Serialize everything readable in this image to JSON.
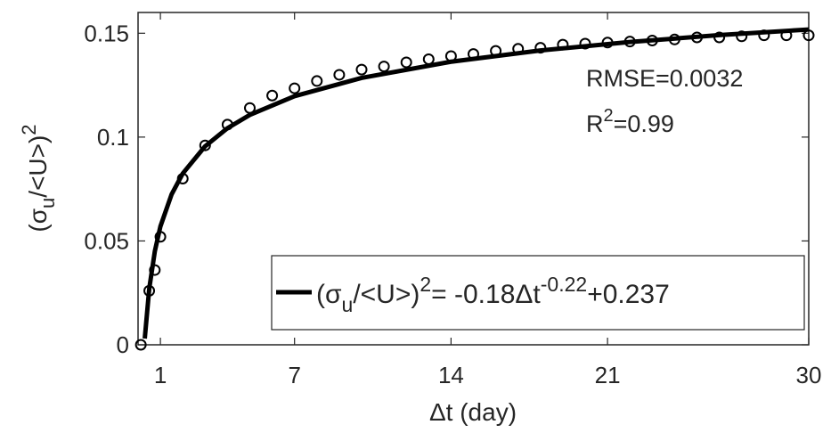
{
  "chart_data": {
    "type": "scatter+line",
    "x_label": "Δt (day)",
    "y_label": [
      "(σ",
      "u",
      "/<U>)",
      "2"
    ],
    "xlim": [
      0,
      30
    ],
    "ylim": [
      0,
      0.16
    ],
    "xticks": [
      1,
      7,
      14,
      21,
      30
    ],
    "yticks": [
      0,
      0.05,
      0.1,
      0.15
    ],
    "series": [
      {
        "type": "scatter",
        "color": "#000000",
        "x": [
          0.125,
          0.5,
          0.75,
          1,
          2,
          3,
          4,
          5,
          6,
          7,
          8,
          9,
          10,
          11,
          12,
          13,
          14,
          15,
          16,
          17,
          18,
          19,
          20,
          21,
          22,
          23,
          24,
          25,
          26,
          27,
          28,
          29,
          30
        ],
        "values": [
          0,
          0.026,
          0.036,
          0.052,
          0.08,
          0.096,
          0.106,
          0.114,
          0.12,
          0.1235,
          0.127,
          0.13,
          0.1325,
          0.134,
          0.136,
          0.1375,
          0.139,
          0.14,
          0.1415,
          0.1425,
          0.143,
          0.1445,
          0.145,
          0.1455,
          0.146,
          0.1465,
          0.147,
          0.148,
          0.148,
          0.1485,
          0.149,
          0.149,
          0.149
        ]
      },
      {
        "type": "line",
        "color": "#000000",
        "name": [
          "(σ",
          "u",
          "/<U>)",
          "2",
          "= -0.18Δt",
          "-0.22",
          "+0.237"
        ],
        "x": [
          0.3,
          0.5,
          0.75,
          1,
          1.5,
          2,
          3,
          4,
          5,
          7,
          10,
          14,
          18,
          22,
          26,
          30
        ],
        "values": [
          0.003,
          0.027,
          0.045,
          0.057,
          0.0724,
          0.0825,
          0.0956,
          0.1043,
          0.1107,
          0.1197,
          0.1285,
          0.1363,
          0.1417,
          0.1458,
          0.1491,
          0.1518
        ]
      }
    ],
    "annotations": [
      [
        "RMSE=0.0032"
      ],
      [
        "R",
        "2",
        "=0.99"
      ]
    ],
    "legend": "lower right"
  }
}
